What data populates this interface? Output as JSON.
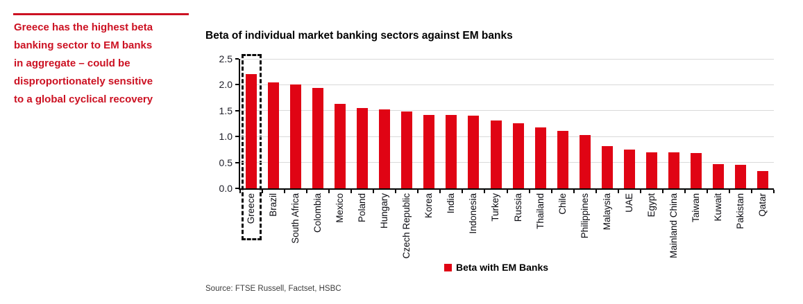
{
  "sidebar": {
    "annotation_lines": [
      "Greece has the highest beta",
      "banking sector to EM banks",
      "in aggregate – could be",
      "disproportionately sensitive",
      "to a global cyclical recovery"
    ]
  },
  "chart": {
    "title": "Beta of individual market banking sectors against EM banks",
    "source": "Source: FTSE Russell, Factset, HSBC",
    "legend": {
      "label": "Beta with EM Banks"
    }
  },
  "chart_data": {
    "type": "bar",
    "title": "Beta of individual market banking sectors against EM banks",
    "series_name": "Beta with EM Banks",
    "categories": [
      "Greece",
      "Brazil",
      "South Africa",
      "Colombia",
      "Mexico",
      "Poland",
      "Hungary",
      "Czech Republic",
      "Korea",
      "India",
      "Indonesia",
      "Turkey",
      "Russia",
      "Thailand",
      "Chile",
      "Philippines",
      "Malaysia",
      "UAE",
      "Egypt",
      "Mainland China",
      "Taiwan",
      "Kuwait",
      "Pakistan",
      "Qatar"
    ],
    "values": [
      2.2,
      2.05,
      2.0,
      1.94,
      1.63,
      1.55,
      1.52,
      1.48,
      1.42,
      1.42,
      1.4,
      1.31,
      1.26,
      1.18,
      1.11,
      1.03,
      0.82,
      0.75,
      0.7,
      0.7,
      0.68,
      0.47,
      0.45,
      0.34
    ],
    "xlabel": "",
    "ylabel": "",
    "ylim": [
      0,
      2.5
    ],
    "yticks": [
      0,
      0.5,
      1,
      1.5,
      2,
      2.5
    ],
    "grid": true,
    "legend_position": "bottom",
    "highlighted_category": "Greece",
    "highlight_style": "black-dashed-box"
  },
  "colors": {
    "annotation_red": "#cc1122",
    "bar_red": "#e00414",
    "gridline_gray": "#d9d9d9",
    "axis_black": "#000000"
  }
}
